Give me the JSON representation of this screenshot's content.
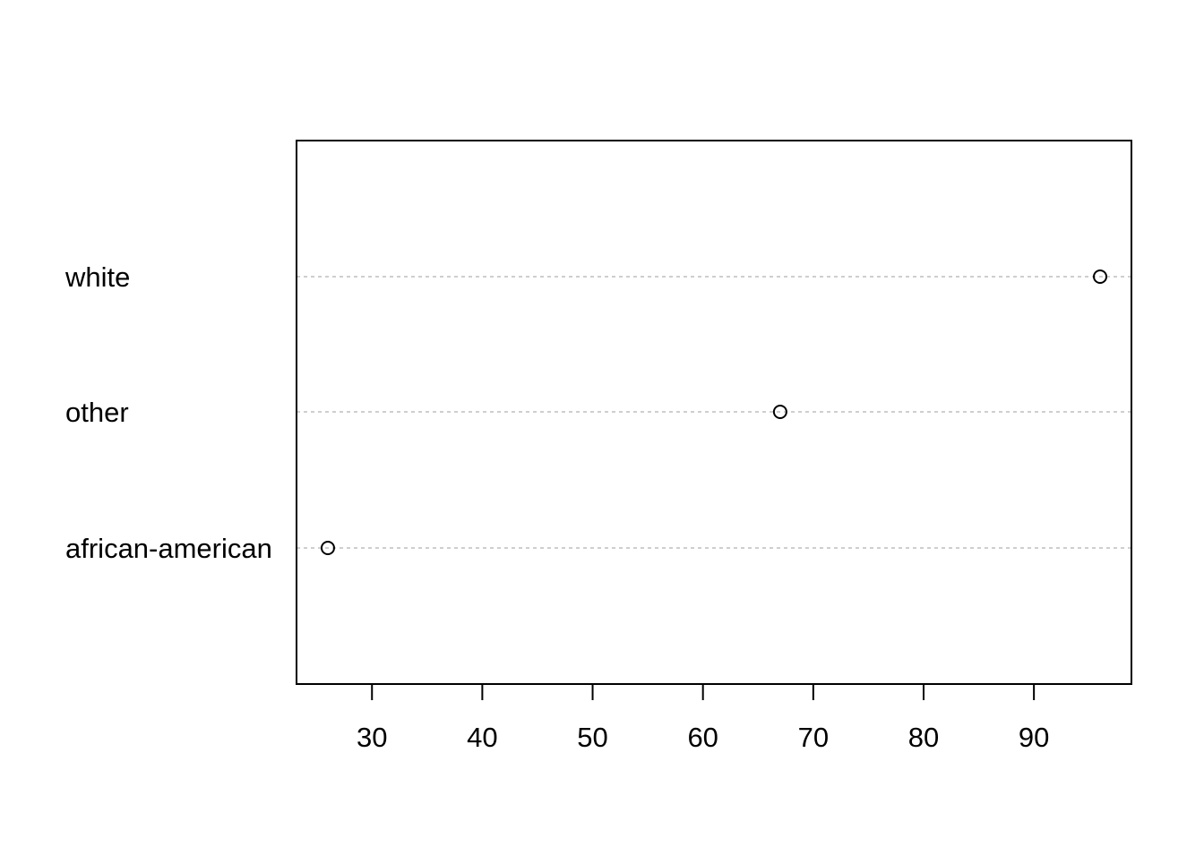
{
  "chart_data": {
    "type": "scatter",
    "subtype": "dotchart",
    "title": "",
    "xlabel": "",
    "ylabel": "",
    "categories": [
      "african-american",
      "other",
      "white"
    ],
    "values": [
      26,
      67,
      96
    ],
    "xlim": [
      23.16,
      98.84
    ],
    "xticks": [
      30,
      40,
      50,
      60,
      70,
      80,
      90
    ],
    "grid": "dotted horizontal lines at each category",
    "marker": "open circle",
    "colors": {
      "points": "#000000",
      "gridlines": "#bebebe",
      "axis": "#000000",
      "background": "#ffffff"
    }
  }
}
